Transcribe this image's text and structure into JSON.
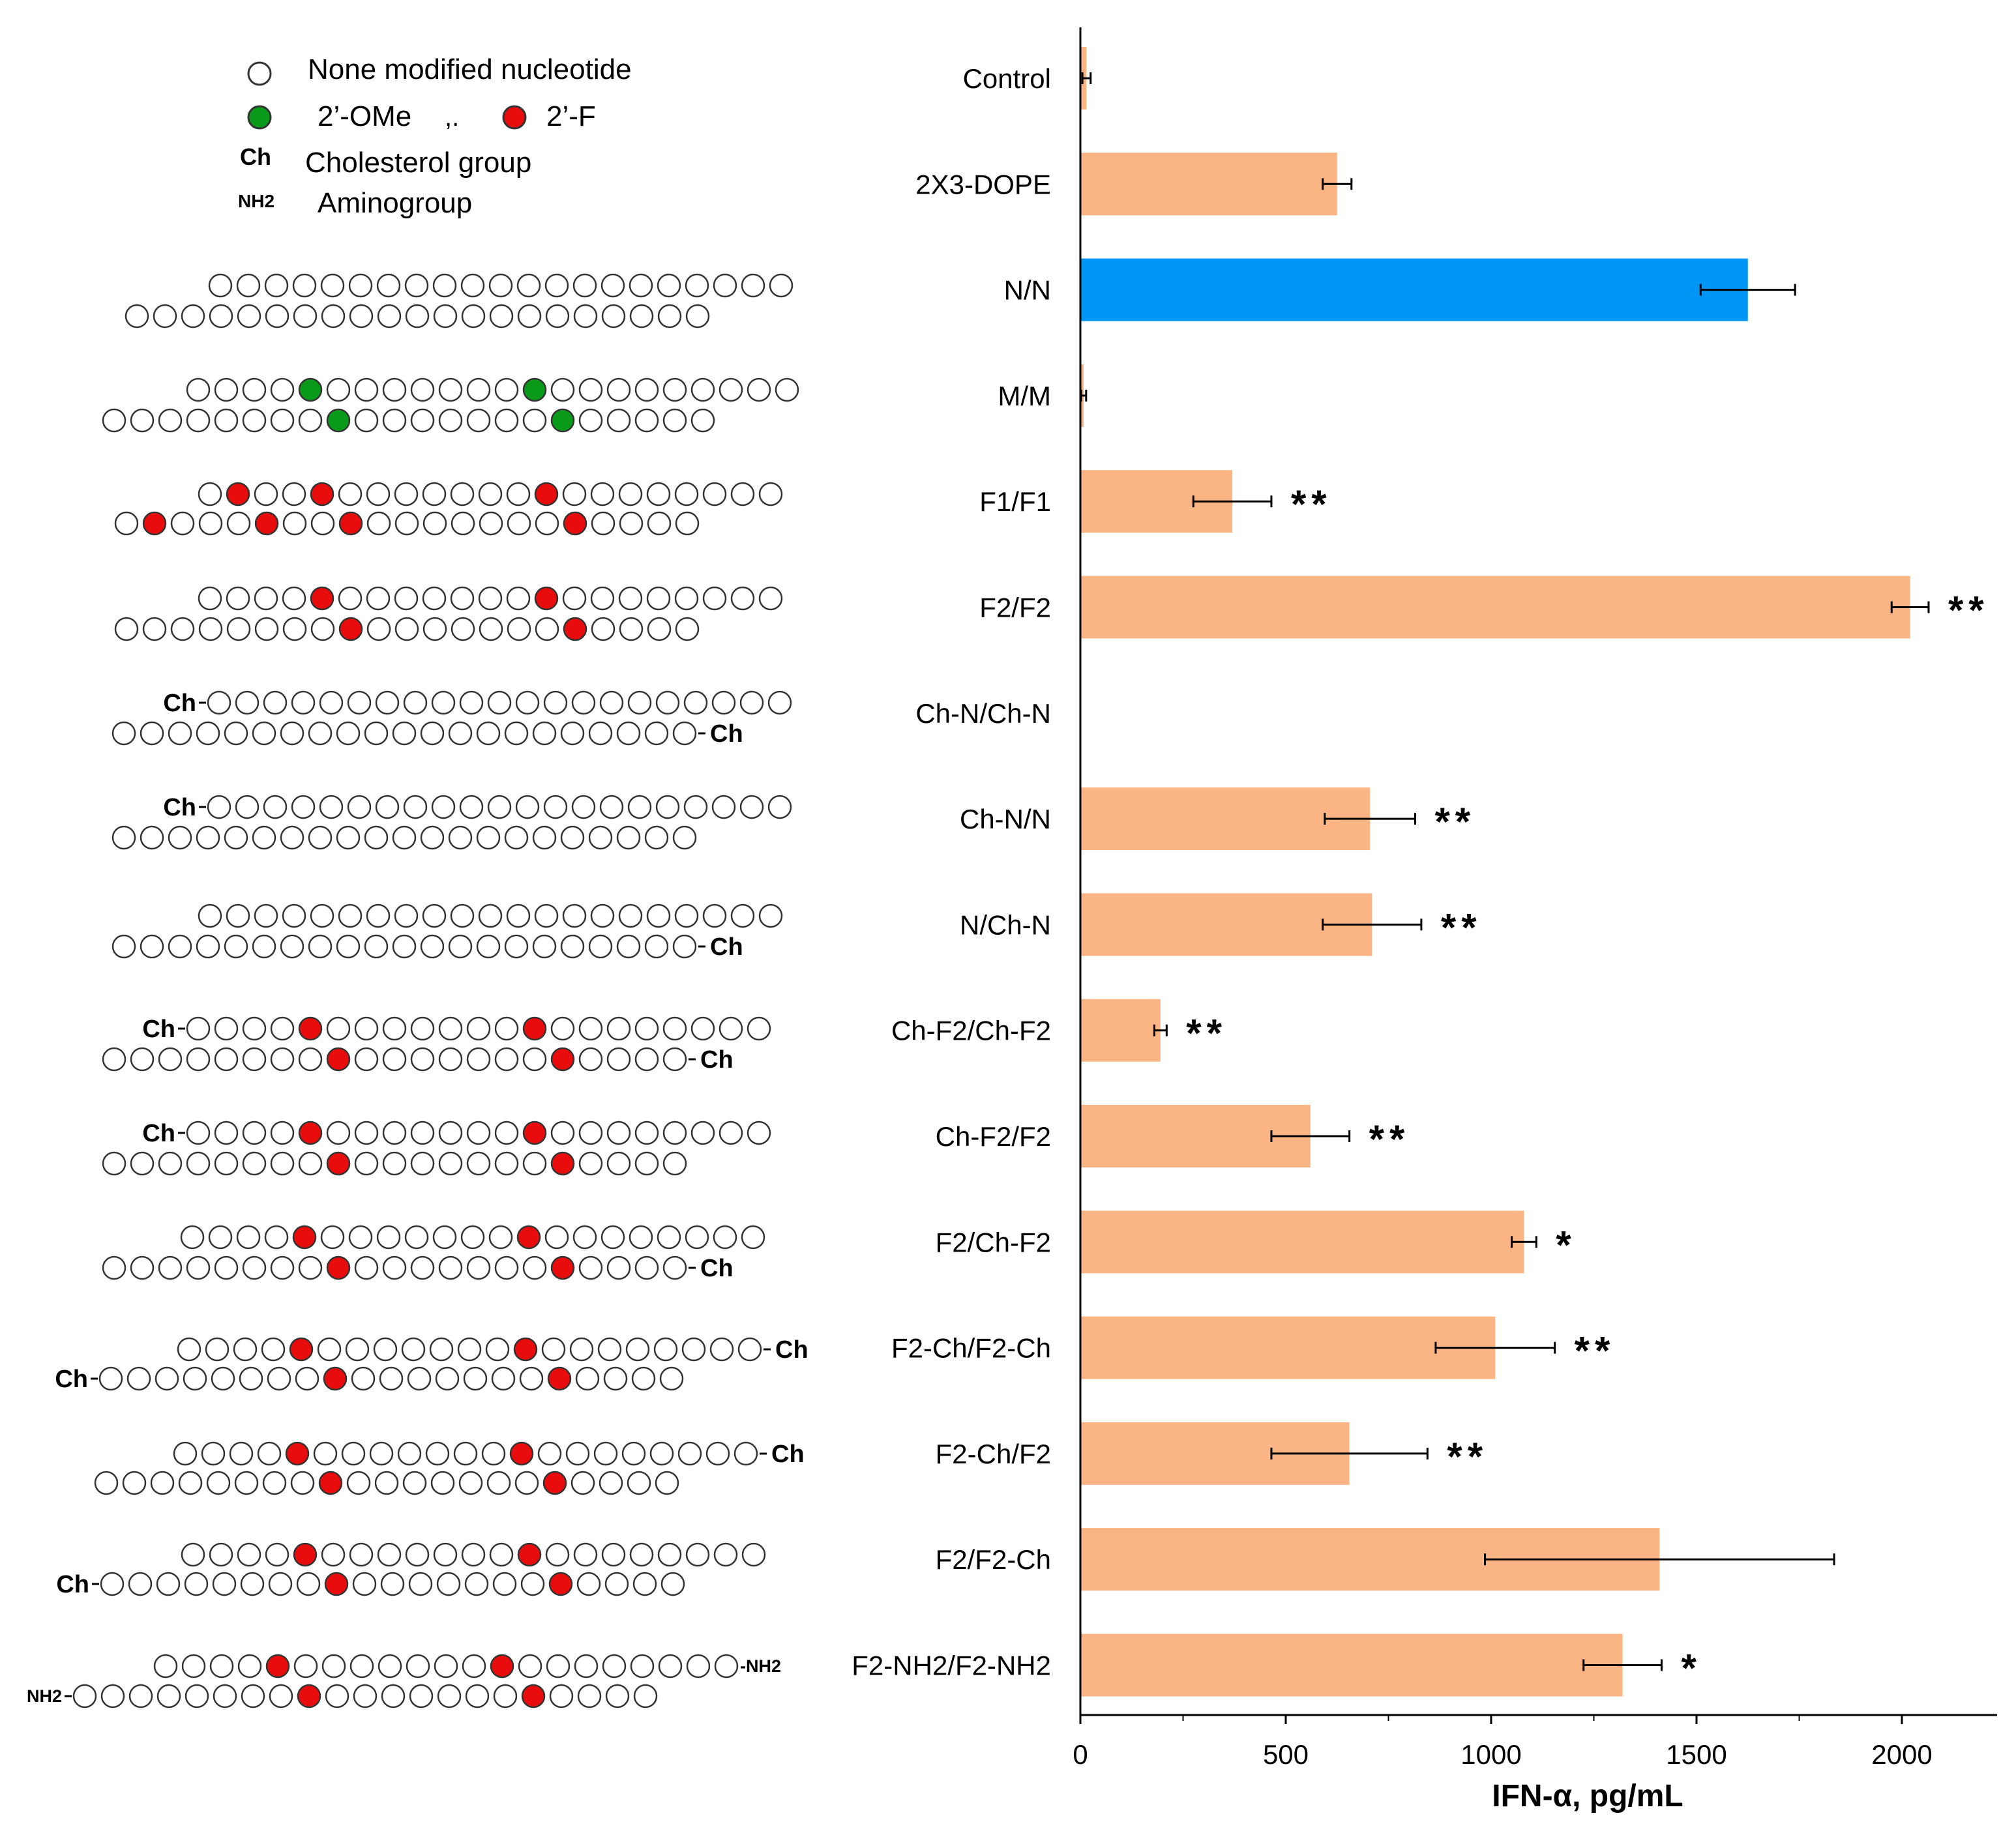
{
  "legend": {
    "none_label": "None modified nucleotide",
    "ome_label": "2’-OMe",
    "separator": ",.",
    "f_label": "2’-F",
    "ch_abbr": "Ch",
    "ch_label": "Cholesterol group",
    "nh2_abbr": "NH2",
    "nh2_label": "Aminogroup"
  },
  "colors": {
    "bar": "#fbb584",
    "highlight": "#0096f5",
    "ome": "#0a9a1a",
    "fluoro": "#e80c0c",
    "axis": "#000000"
  },
  "chart_data": {
    "type": "bar",
    "orientation": "horizontal",
    "categories": [
      "Control",
      "2X3-DOPE",
      "N/N",
      "M/M",
      "F1/F1",
      "F2/F2",
      "Ch-N/Ch-N",
      "Ch-N/N",
      "N/Ch-N",
      "Ch-F2/Ch-F2",
      "Ch-F2/F2",
      "F2/Ch-F2",
      "F2-Ch/F2-Ch",
      "F2-Ch/F2",
      "F2/F2-Ch",
      "F2-NH2/F2-NH2"
    ],
    "values": [
      15,
      625,
      1625,
      8,
      370,
      2020,
      0,
      705,
      710,
      195,
      560,
      1080,
      1010,
      655,
      1410,
      1320
    ],
    "errors": [
      10,
      35,
      115,
      6,
      95,
      45,
      0,
      110,
      120,
      15,
      95,
      30,
      145,
      190,
      425,
      95
    ],
    "significance": [
      "",
      "",
      "",
      "",
      "**",
      "**",
      "",
      "**",
      "**",
      "**",
      "**",
      "*",
      "**",
      "**",
      "",
      "*"
    ],
    "highlight_index": 2,
    "xlabel": "IFN-α, pg/mL",
    "xlim": [
      0,
      2250
    ],
    "xticks": [
      0,
      500,
      1000,
      1500,
      2000
    ],
    "xtick_labels": [
      "0",
      "500",
      "1000",
      "1500",
      "2000"
    ]
  },
  "duplexes": [
    {
      "top": {
        "n": 21,
        "mods": [],
        "mod": "",
        "left": "",
        "right": ""
      },
      "bottom": {
        "n": 21,
        "mods": [],
        "mod": "",
        "left": "",
        "right": ""
      }
    },
    {
      "top": {
        "n": 22,
        "mods": [
          4,
          12
        ],
        "mod": "ome",
        "left": "",
        "right": ""
      },
      "bottom": {
        "n": 22,
        "mods": [
          8,
          16
        ],
        "mod": "ome",
        "left": "",
        "right": ""
      }
    },
    {
      "top": {
        "n": 21,
        "mods": [
          1,
          4,
          12
        ],
        "mod": "fluoro",
        "left": "",
        "right": ""
      },
      "bottom": {
        "n": 21,
        "mods": [
          1,
          5,
          8,
          16
        ],
        "mod": "fluoro",
        "left": "",
        "right": ""
      }
    },
    {
      "top": {
        "n": 21,
        "mods": [
          4,
          12
        ],
        "mod": "fluoro",
        "left": "",
        "right": ""
      },
      "bottom": {
        "n": 21,
        "mods": [
          8,
          16
        ],
        "mod": "fluoro",
        "left": "",
        "right": ""
      }
    },
    {
      "top": {
        "n": 21,
        "mods": [],
        "mod": "",
        "left": "Ch",
        "right": ""
      },
      "bottom": {
        "n": 21,
        "mods": [],
        "mod": "",
        "left": "",
        "right": "Ch"
      }
    },
    {
      "top": {
        "n": 21,
        "mods": [],
        "mod": "",
        "left": "Ch",
        "right": ""
      },
      "bottom": {
        "n": 21,
        "mods": [],
        "mod": "",
        "left": "",
        "right": ""
      }
    },
    {
      "top": {
        "n": 21,
        "mods": [],
        "mod": "",
        "left": "",
        "right": ""
      },
      "bottom": {
        "n": 21,
        "mods": [],
        "mod": "",
        "left": "",
        "right": "Ch"
      }
    },
    {
      "top": {
        "n": 21,
        "mods": [
          4,
          12
        ],
        "mod": "fluoro",
        "left": "Ch",
        "right": ""
      },
      "bottom": {
        "n": 21,
        "mods": [
          8,
          16
        ],
        "mod": "fluoro",
        "left": "",
        "right": "Ch"
      }
    },
    {
      "top": {
        "n": 21,
        "mods": [
          4,
          12
        ],
        "mod": "fluoro",
        "left": "Ch",
        "right": ""
      },
      "bottom": {
        "n": 21,
        "mods": [
          8,
          16
        ],
        "mod": "fluoro",
        "left": "",
        "right": ""
      }
    },
    {
      "top": {
        "n": 21,
        "mods": [
          4,
          12
        ],
        "mod": "fluoro",
        "left": "",
        "right": ""
      },
      "bottom": {
        "n": 21,
        "mods": [
          8,
          16
        ],
        "mod": "fluoro",
        "left": "",
        "right": "Ch"
      }
    },
    {
      "top": {
        "n": 21,
        "mods": [
          4,
          12
        ],
        "mod": "fluoro",
        "left": "",
        "right": "Ch"
      },
      "bottom": {
        "n": 21,
        "mods": [
          8,
          16
        ],
        "mod": "fluoro",
        "left": "Ch",
        "right": ""
      }
    },
    {
      "top": {
        "n": 21,
        "mods": [
          4,
          12
        ],
        "mod": "fluoro",
        "left": "",
        "right": "Ch"
      },
      "bottom": {
        "n": 21,
        "mods": [
          8,
          16
        ],
        "mod": "fluoro",
        "left": "",
        "right": ""
      }
    },
    {
      "top": {
        "n": 21,
        "mods": [
          4,
          12
        ],
        "mod": "fluoro",
        "left": "",
        "right": ""
      },
      "bottom": {
        "n": 21,
        "mods": [
          8,
          16
        ],
        "mod": "fluoro",
        "left": "Ch",
        "right": ""
      }
    },
    {
      "top": {
        "n": 21,
        "mods": [
          4,
          12
        ],
        "mod": "fluoro",
        "left": "",
        "right": "-NH2"
      },
      "bottom": {
        "n": 21,
        "mods": [
          8,
          16
        ],
        "mod": "fluoro",
        "left": "NH2",
        "right": ""
      }
    }
  ]
}
